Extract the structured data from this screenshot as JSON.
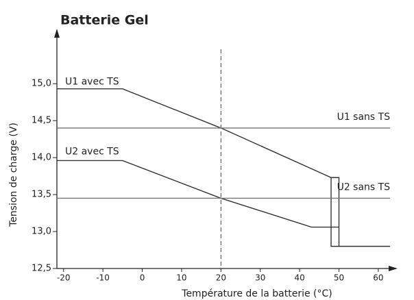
{
  "chart_data": {
    "type": "line",
    "title": "Batterie Gel",
    "x_label": "Température de la batterie (°C)",
    "y_label": "Tension de charge (V)",
    "xlim": [
      -21.7,
      63.5
    ],
    "ylim": [
      12.5,
      15.65
    ],
    "xticks": [
      -20,
      -10,
      0,
      10,
      20,
      30,
      40,
      50,
      60
    ],
    "yticks": [
      {
        "value": 12.5,
        "label": "12,5"
      },
      {
        "value": 13.0,
        "label": "13,0"
      },
      {
        "value": 13.5,
        "label": "13,5"
      },
      {
        "value": 14.0,
        "label": "14,0"
      },
      {
        "value": 14.5,
        "label": "14,5"
      },
      {
        "value": 15.0,
        "label": "15,0"
      }
    ],
    "reference_x": 20,
    "series": [
      {
        "name": "U1 avec TS",
        "color": "#333333",
        "x": [
          -21.7,
          -5,
          20,
          48,
          48,
          63
        ],
        "values": [
          14.93,
          14.93,
          14.4,
          13.73,
          12.8,
          12.8
        ]
      },
      {
        "name": "U2 avec TS",
        "color": "#333333",
        "x": [
          -21.7,
          -5,
          20,
          43,
          50,
          50,
          50,
          48
        ],
        "values": [
          13.96,
          13.96,
          13.45,
          13.06,
          13.06,
          12.8,
          13.73,
          13.73
        ]
      },
      {
        "name": "U1 sans TS",
        "color": "#777777",
        "x": [
          -21.7,
          63
        ],
        "values": [
          14.4,
          14.4
        ]
      },
      {
        "name": "U2 sans TS",
        "color": "#777777",
        "x": [
          -21.7,
          63
        ],
        "values": [
          13.45,
          13.45
        ]
      }
    ]
  }
}
